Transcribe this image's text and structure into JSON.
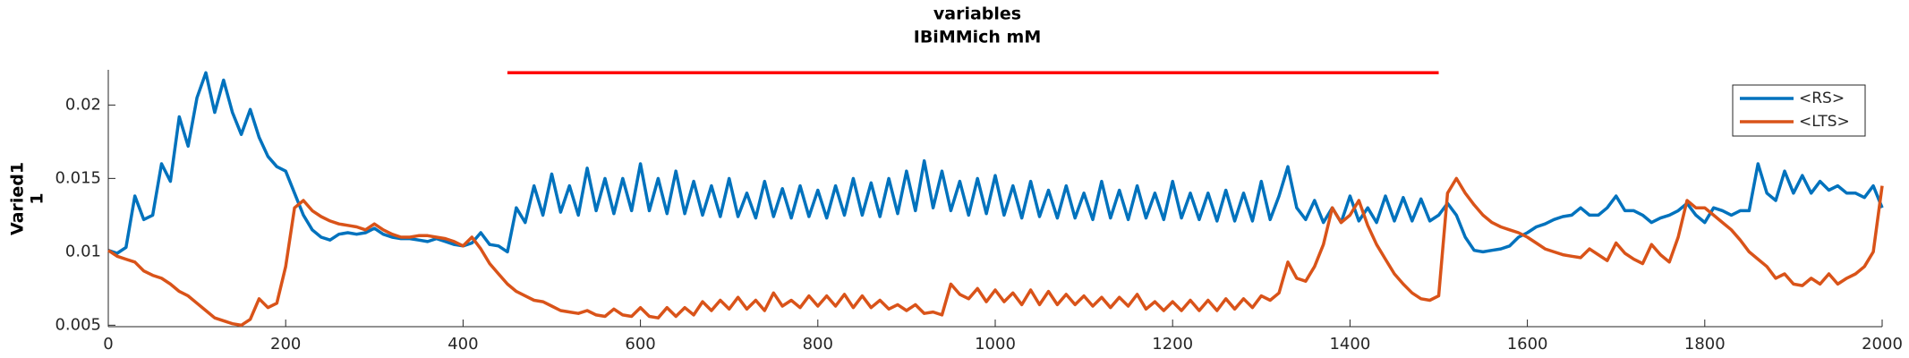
{
  "chart_data": {
    "type": "line",
    "title": [
      "variables",
      "IBiMMich mM"
    ],
    "ylabel": [
      "Varied1",
      "1"
    ],
    "x": [
      0,
      10,
      20,
      30,
      40,
      50,
      60,
      70,
      80,
      90,
      100,
      110,
      120,
      130,
      140,
      150,
      160,
      170,
      180,
      190,
      200,
      210,
      220,
      230,
      240,
      250,
      260,
      270,
      280,
      290,
      300,
      310,
      320,
      330,
      340,
      350,
      360,
      370,
      380,
      390,
      400,
      410,
      420,
      430,
      440,
      450,
      460,
      470,
      480,
      490,
      500,
      510,
      520,
      530,
      540,
      550,
      560,
      570,
      580,
      590,
      600,
      610,
      620,
      630,
      640,
      650,
      660,
      670,
      680,
      690,
      700,
      710,
      720,
      730,
      740,
      750,
      760,
      770,
      780,
      790,
      800,
      810,
      820,
      830,
      840,
      850,
      860,
      870,
      880,
      890,
      900,
      910,
      920,
      930,
      940,
      950,
      960,
      970,
      980,
      990,
      1000,
      1010,
      1020,
      1030,
      1040,
      1050,
      1060,
      1070,
      1080,
      1090,
      1100,
      1110,
      1120,
      1130,
      1140,
      1150,
      1160,
      1170,
      1180,
      1190,
      1200,
      1210,
      1220,
      1230,
      1240,
      1250,
      1260,
      1270,
      1280,
      1290,
      1300,
      1310,
      1320,
      1330,
      1340,
      1350,
      1360,
      1370,
      1380,
      1390,
      1400,
      1410,
      1420,
      1430,
      1440,
      1450,
      1460,
      1470,
      1480,
      1490,
      1500,
      1510,
      1520,
      1530,
      1540,
      1550,
      1560,
      1570,
      1580,
      1590,
      1600,
      1610,
      1620,
      1630,
      1640,
      1650,
      1660,
      1670,
      1680,
      1690,
      1700,
      1710,
      1720,
      1730,
      1740,
      1750,
      1760,
      1770,
      1780,
      1790,
      1800,
      1810,
      1820,
      1830,
      1840,
      1850,
      1860,
      1870,
      1880,
      1890,
      1900,
      1910,
      1920,
      1930,
      1940,
      1950,
      1960,
      1970,
      1980,
      1990,
      2000
    ],
    "series": [
      {
        "name": "<RS>",
        "color": "#0072BD",
        "values": [
          0.0101,
          0.0099,
          0.0103,
          0.0138,
          0.0122,
          0.0125,
          0.016,
          0.0148,
          0.0192,
          0.0172,
          0.0205,
          0.0222,
          0.0195,
          0.0217,
          0.0195,
          0.018,
          0.0197,
          0.0178,
          0.0165,
          0.0158,
          0.0155,
          0.014,
          0.0125,
          0.0115,
          0.011,
          0.0108,
          0.0112,
          0.0113,
          0.0112,
          0.0113,
          0.0116,
          0.0112,
          0.011,
          0.0109,
          0.0109,
          0.0108,
          0.0107,
          0.0109,
          0.0107,
          0.0105,
          0.0104,
          0.0106,
          0.0113,
          0.0105,
          0.0104,
          0.01,
          0.013,
          0.012,
          0.0145,
          0.0125,
          0.0153,
          0.0127,
          0.0145,
          0.0125,
          0.0157,
          0.0128,
          0.015,
          0.0126,
          0.015,
          0.0128,
          0.016,
          0.0128,
          0.015,
          0.0126,
          0.0155,
          0.0126,
          0.0148,
          0.0125,
          0.0145,
          0.0124,
          0.015,
          0.0124,
          0.014,
          0.0123,
          0.0148,
          0.0124,
          0.0143,
          0.0123,
          0.0145,
          0.0124,
          0.0142,
          0.0123,
          0.0145,
          0.0125,
          0.015,
          0.0125,
          0.0147,
          0.0124,
          0.015,
          0.0126,
          0.0155,
          0.0128,
          0.0162,
          0.013,
          0.0155,
          0.0128,
          0.0148,
          0.0125,
          0.015,
          0.0126,
          0.0152,
          0.0125,
          0.0145,
          0.0123,
          0.0148,
          0.0124,
          0.0142,
          0.0123,
          0.0145,
          0.0123,
          0.014,
          0.0122,
          0.0148,
          0.0123,
          0.0142,
          0.0122,
          0.0145,
          0.0123,
          0.014,
          0.0122,
          0.0148,
          0.0123,
          0.014,
          0.0122,
          0.014,
          0.0121,
          0.0142,
          0.0121,
          0.014,
          0.0121,
          0.0148,
          0.0122,
          0.0138,
          0.0158,
          0.013,
          0.0122,
          0.0135,
          0.012,
          0.013,
          0.012,
          0.0138,
          0.0121,
          0.013,
          0.012,
          0.0138,
          0.0121,
          0.0137,
          0.0121,
          0.0136,
          0.0121,
          0.0125,
          0.0133,
          0.0125,
          0.011,
          0.0101,
          0.01,
          0.0101,
          0.0102,
          0.0104,
          0.011,
          0.0113,
          0.0117,
          0.0119,
          0.0122,
          0.0124,
          0.0125,
          0.013,
          0.0125,
          0.0125,
          0.013,
          0.0138,
          0.0128,
          0.0128,
          0.0125,
          0.012,
          0.0123,
          0.0125,
          0.0128,
          0.0133,
          0.0125,
          0.012,
          0.013,
          0.0128,
          0.0125,
          0.0128,
          0.0128,
          0.016,
          0.014,
          0.0135,
          0.0155,
          0.014,
          0.0152,
          0.014,
          0.0148,
          0.0142,
          0.0145,
          0.014,
          0.014,
          0.0137,
          0.0145,
          0.013
        ]
      },
      {
        "name": "<LTS>",
        "color": "#D95319",
        "values": [
          0.0101,
          0.0097,
          0.0095,
          0.0093,
          0.0087,
          0.0084,
          0.0082,
          0.0078,
          0.0073,
          0.007,
          0.0065,
          0.006,
          0.0055,
          0.0053,
          0.0051,
          0.005,
          0.0054,
          0.0068,
          0.0062,
          0.0065,
          0.009,
          0.013,
          0.0135,
          0.0128,
          0.0124,
          0.0121,
          0.0119,
          0.0118,
          0.0117,
          0.0115,
          0.0119,
          0.0115,
          0.0112,
          0.011,
          0.011,
          0.0111,
          0.0111,
          0.011,
          0.0109,
          0.0107,
          0.0104,
          0.011,
          0.0102,
          0.0092,
          0.0085,
          0.0078,
          0.0073,
          0.007,
          0.0067,
          0.0066,
          0.0063,
          0.006,
          0.0059,
          0.0058,
          0.006,
          0.0057,
          0.0056,
          0.0061,
          0.0057,
          0.0056,
          0.0062,
          0.0056,
          0.0055,
          0.0062,
          0.0056,
          0.0062,
          0.0057,
          0.0066,
          0.006,
          0.0067,
          0.0061,
          0.0069,
          0.0061,
          0.0067,
          0.006,
          0.0072,
          0.0063,
          0.0067,
          0.0062,
          0.007,
          0.0063,
          0.007,
          0.0063,
          0.0071,
          0.0062,
          0.007,
          0.0062,
          0.0067,
          0.0061,
          0.0064,
          0.006,
          0.0064,
          0.0058,
          0.0059,
          0.0057,
          0.0078,
          0.0071,
          0.0068,
          0.0075,
          0.0066,
          0.0074,
          0.0066,
          0.0072,
          0.0064,
          0.0074,
          0.0064,
          0.0073,
          0.0064,
          0.0071,
          0.0064,
          0.007,
          0.0063,
          0.0069,
          0.0062,
          0.0069,
          0.0063,
          0.0071,
          0.0061,
          0.0066,
          0.006,
          0.0066,
          0.006,
          0.0067,
          0.006,
          0.0067,
          0.006,
          0.0068,
          0.0061,
          0.0068,
          0.0062,
          0.007,
          0.0067,
          0.0072,
          0.0093,
          0.0082,
          0.008,
          0.009,
          0.0105,
          0.013,
          0.012,
          0.0125,
          0.0135,
          0.0118,
          0.0105,
          0.0095,
          0.0085,
          0.0078,
          0.0072,
          0.0068,
          0.0067,
          0.007,
          0.014,
          0.015,
          0.014,
          0.0132,
          0.0125,
          0.012,
          0.0117,
          0.0115,
          0.0113,
          0.011,
          0.0106,
          0.0102,
          0.01,
          0.0098,
          0.0097,
          0.0096,
          0.0102,
          0.0098,
          0.0094,
          0.0106,
          0.0099,
          0.0095,
          0.0092,
          0.0105,
          0.0098,
          0.0093,
          0.011,
          0.0135,
          0.013,
          0.013,
          0.0125,
          0.012,
          0.0115,
          0.0108,
          0.01,
          0.0095,
          0.009,
          0.0082,
          0.0085,
          0.0078,
          0.0077,
          0.0082,
          0.0078,
          0.0085,
          0.0078,
          0.0082,
          0.0085,
          0.009,
          0.01,
          0.0145
        ]
      }
    ],
    "marker_line": {
      "x": [
        450,
        1500
      ],
      "y": 0.0222,
      "color": "#ff0000"
    },
    "xlim": [
      0,
      2000
    ],
    "xticks": [
      0,
      200,
      400,
      600,
      800,
      1000,
      1200,
      1400,
      1600,
      1800,
      2000
    ],
    "ylim": [
      0.0049,
      0.0224
    ],
    "yticks": [
      0.005,
      0.01,
      0.015,
      0.02
    ],
    "legend": "upper right"
  }
}
